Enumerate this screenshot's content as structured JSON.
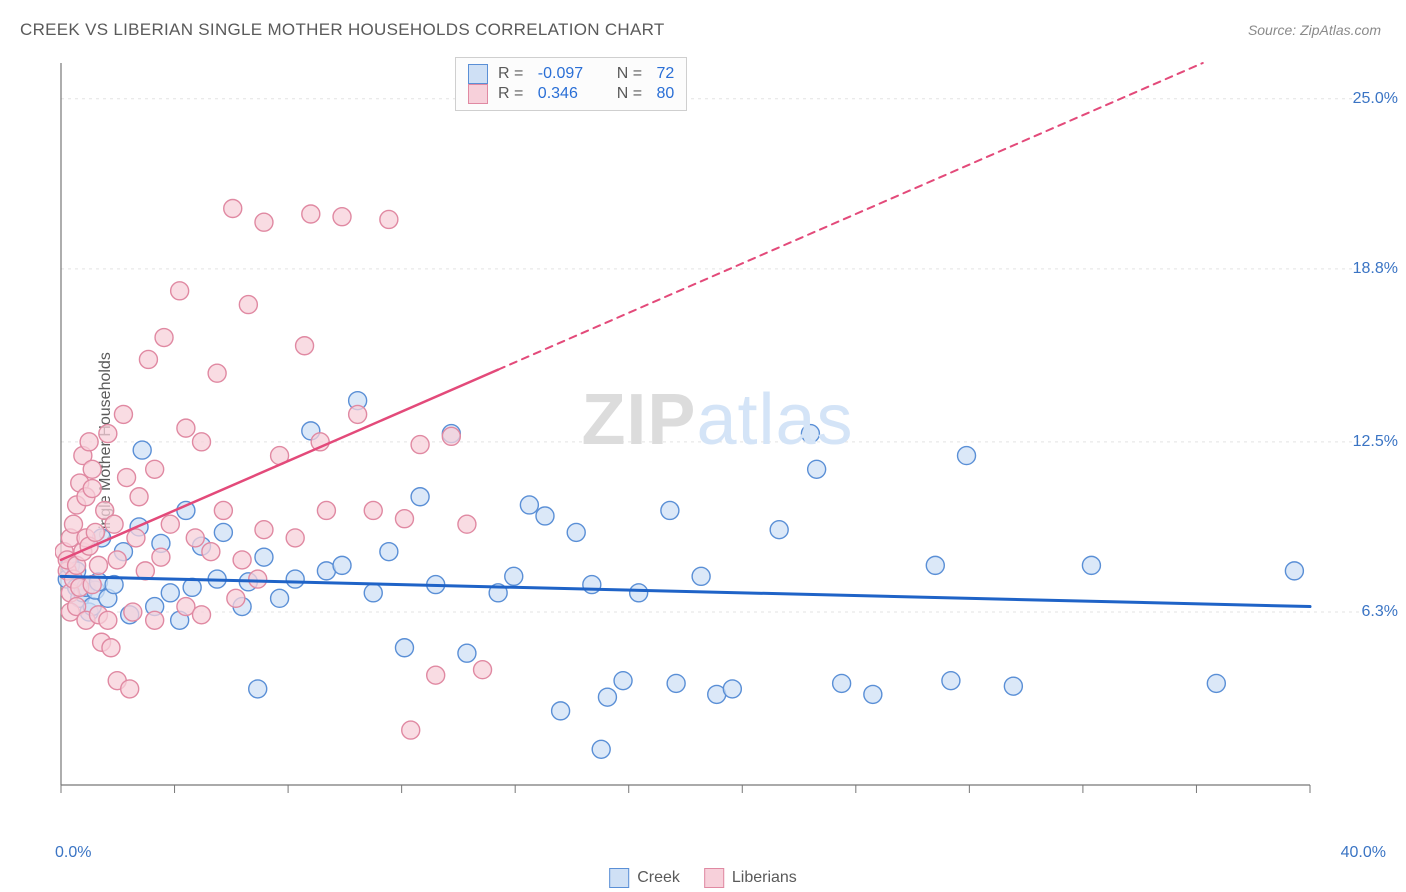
{
  "title": "CREEK VS LIBERIAN SINGLE MOTHER HOUSEHOLDS CORRELATION CHART",
  "source_label": "Source: ZipAtlas.com",
  "ylabel": "Single Mother Households",
  "watermark": {
    "part1": "ZIP",
    "part2": "atlas"
  },
  "chart": {
    "type": "scatter",
    "background_color": "#ffffff",
    "grid_color": "#e3e3e3",
    "axis_color": "#777777",
    "text_color": "#5a5a5a",
    "value_color": "#2a6fd6",
    "xlim": [
      0.0,
      40.0
    ],
    "ylim": [
      0.0,
      26.3
    ],
    "x_axis": {
      "min_label": "0.0%",
      "max_label": "40.0%",
      "tick_count": 11
    },
    "y_ticks": [
      {
        "value": 6.3,
        "label": "6.3%"
      },
      {
        "value": 12.5,
        "label": "12.5%"
      },
      {
        "value": 18.8,
        "label": "18.8%"
      },
      {
        "value": 25.0,
        "label": "25.0%"
      }
    ],
    "stats_legend": [
      {
        "swatch_fill": "#cfe0f5",
        "swatch_stroke": "#5a8fd6",
        "R": "-0.097",
        "N": "72"
      },
      {
        "swatch_fill": "#f7d0da",
        "swatch_stroke": "#e089a2",
        "R": "0.346",
        "N": "80"
      }
    ],
    "series_legend": [
      {
        "label": "Creek",
        "swatch_fill": "#cfe0f5",
        "swatch_stroke": "#5a8fd6"
      },
      {
        "label": "Liberians",
        "swatch_fill": "#f7d0da",
        "swatch_stroke": "#e089a2"
      }
    ],
    "series": [
      {
        "name": "Creek",
        "marker_fill": "#cfe0f5",
        "marker_stroke": "#5a8fd6",
        "marker_radius": 9,
        "marker_opacity": 0.75,
        "trend": {
          "color": "#1f63c7",
          "width": 3,
          "y_at_x0": 7.6,
          "y_at_x40": 6.5,
          "dash_from_x": 40.0
        },
        "points": [
          [
            0.2,
            7.5
          ],
          [
            0.3,
            8.0
          ],
          [
            0.5,
            7.2
          ],
          [
            0.5,
            7.8
          ],
          [
            0.6,
            6.8
          ],
          [
            0.7,
            7.0
          ],
          [
            0.8,
            7.2
          ],
          [
            0.9,
            6.3
          ],
          [
            1.0,
            6.5
          ],
          [
            1.1,
            7.1
          ],
          [
            1.2,
            7.4
          ],
          [
            1.3,
            9.0
          ],
          [
            1.5,
            6.8
          ],
          [
            1.7,
            7.3
          ],
          [
            2.0,
            8.5
          ],
          [
            2.2,
            6.2
          ],
          [
            2.5,
            9.4
          ],
          [
            2.6,
            12.2
          ],
          [
            3.0,
            6.5
          ],
          [
            3.2,
            8.8
          ],
          [
            3.5,
            7.0
          ],
          [
            3.8,
            6.0
          ],
          [
            4.0,
            10.0
          ],
          [
            4.2,
            7.2
          ],
          [
            4.5,
            8.7
          ],
          [
            5.0,
            7.5
          ],
          [
            5.2,
            9.2
          ],
          [
            5.8,
            6.5
          ],
          [
            6.0,
            7.4
          ],
          [
            6.3,
            3.5
          ],
          [
            6.5,
            8.3
          ],
          [
            7.0,
            6.8
          ],
          [
            7.5,
            7.5
          ],
          [
            8.0,
            12.9
          ],
          [
            8.5,
            7.8
          ],
          [
            9.0,
            8.0
          ],
          [
            9.5,
            14.0
          ],
          [
            10.0,
            7.0
          ],
          [
            10.5,
            8.5
          ],
          [
            11.0,
            5.0
          ],
          [
            11.5,
            10.5
          ],
          [
            12.0,
            7.3
          ],
          [
            12.5,
            12.8
          ],
          [
            13.0,
            4.8
          ],
          [
            14.0,
            7.0
          ],
          [
            14.5,
            7.6
          ],
          [
            15.0,
            10.2
          ],
          [
            15.5,
            9.8
          ],
          [
            16.0,
            2.7
          ],
          [
            16.5,
            9.2
          ],
          [
            17.0,
            7.3
          ],
          [
            17.3,
            1.3
          ],
          [
            17.5,
            3.2
          ],
          [
            18.0,
            3.8
          ],
          [
            18.5,
            7.0
          ],
          [
            19.5,
            10.0
          ],
          [
            19.7,
            3.7
          ],
          [
            20.5,
            7.6
          ],
          [
            21.0,
            3.3
          ],
          [
            21.5,
            3.5
          ],
          [
            23.0,
            9.3
          ],
          [
            24.0,
            12.8
          ],
          [
            24.2,
            11.5
          ],
          [
            25.0,
            3.7
          ],
          [
            26.0,
            3.3
          ],
          [
            28.0,
            8.0
          ],
          [
            28.5,
            3.8
          ],
          [
            29.0,
            12.0
          ],
          [
            30.5,
            3.6
          ],
          [
            33.0,
            8.0
          ],
          [
            37.0,
            3.7
          ],
          [
            39.5,
            7.8
          ]
        ]
      },
      {
        "name": "Liberians",
        "marker_fill": "#f7d0da",
        "marker_stroke": "#e089a2",
        "marker_radius": 9,
        "marker_opacity": 0.75,
        "trend": {
          "color": "#e34a7a",
          "width": 2.5,
          "y_at_x0": 8.2,
          "y_at_x40": 28.0,
          "dash_from_x": 14.0
        },
        "points": [
          [
            0.1,
            8.5
          ],
          [
            0.2,
            7.8
          ],
          [
            0.2,
            8.2
          ],
          [
            0.3,
            7.0
          ],
          [
            0.3,
            6.3
          ],
          [
            0.3,
            9.0
          ],
          [
            0.4,
            7.5
          ],
          [
            0.4,
            9.5
          ],
          [
            0.5,
            10.2
          ],
          [
            0.5,
            8.0
          ],
          [
            0.5,
            6.5
          ],
          [
            0.6,
            11.0
          ],
          [
            0.6,
            7.2
          ],
          [
            0.7,
            12.0
          ],
          [
            0.7,
            8.5
          ],
          [
            0.8,
            9.0
          ],
          [
            0.8,
            10.5
          ],
          [
            0.8,
            6.0
          ],
          [
            0.9,
            8.7
          ],
          [
            0.9,
            12.5
          ],
          [
            1.0,
            10.8
          ],
          [
            1.0,
            7.3
          ],
          [
            1.0,
            11.5
          ],
          [
            1.1,
            9.2
          ],
          [
            1.2,
            8.0
          ],
          [
            1.2,
            6.2
          ],
          [
            1.3,
            5.2
          ],
          [
            1.4,
            10.0
          ],
          [
            1.5,
            12.8
          ],
          [
            1.5,
            6.0
          ],
          [
            1.6,
            5.0
          ],
          [
            1.7,
            9.5
          ],
          [
            1.8,
            8.2
          ],
          [
            1.8,
            3.8
          ],
          [
            2.0,
            13.5
          ],
          [
            2.1,
            11.2
          ],
          [
            2.2,
            3.5
          ],
          [
            2.3,
            6.3
          ],
          [
            2.4,
            9.0
          ],
          [
            2.5,
            10.5
          ],
          [
            2.7,
            7.8
          ],
          [
            2.8,
            15.5
          ],
          [
            3.0,
            11.5
          ],
          [
            3.0,
            6.0
          ],
          [
            3.2,
            8.3
          ],
          [
            3.3,
            16.3
          ],
          [
            3.5,
            9.5
          ],
          [
            3.8,
            18.0
          ],
          [
            4.0,
            13.0
          ],
          [
            4.0,
            6.5
          ],
          [
            4.3,
            9.0
          ],
          [
            4.5,
            12.5
          ],
          [
            4.5,
            6.2
          ],
          [
            4.8,
            8.5
          ],
          [
            5.0,
            15.0
          ],
          [
            5.2,
            10.0
          ],
          [
            5.5,
            21.0
          ],
          [
            5.6,
            6.8
          ],
          [
            5.8,
            8.2
          ],
          [
            6.0,
            17.5
          ],
          [
            6.3,
            7.5
          ],
          [
            6.5,
            9.3
          ],
          [
            6.5,
            20.5
          ],
          [
            7.0,
            12.0
          ],
          [
            7.5,
            9.0
          ],
          [
            7.8,
            16.0
          ],
          [
            8.0,
            20.8
          ],
          [
            8.3,
            12.5
          ],
          [
            8.5,
            10.0
          ],
          [
            9.0,
            20.7
          ],
          [
            9.5,
            13.5
          ],
          [
            10.0,
            10.0
          ],
          [
            10.5,
            20.6
          ],
          [
            11.0,
            9.7
          ],
          [
            11.2,
            2.0
          ],
          [
            11.5,
            12.4
          ],
          [
            12.0,
            4.0
          ],
          [
            12.5,
            12.7
          ],
          [
            13.0,
            9.5
          ],
          [
            13.5,
            4.2
          ]
        ]
      }
    ]
  }
}
